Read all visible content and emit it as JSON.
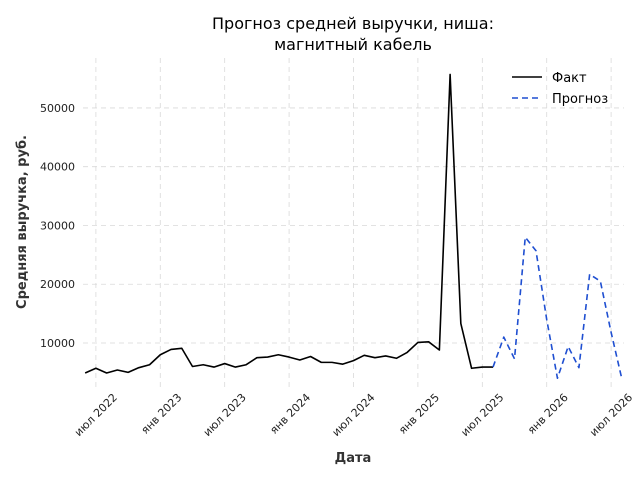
{
  "chart_data": {
    "type": "line",
    "title_lines": [
      "Прогноз средней выручки, ниша:",
      "магнитный кабель"
    ],
    "xlabel": "Дата",
    "ylabel": "Средняя выручка, руб.",
    "x_tick_labels": [
      "июл 2022",
      "янв 2023",
      "июл 2023",
      "янв 2024",
      "июл 2024",
      "янв 2025",
      "июл 2025",
      "янв 2026",
      "июл 2026"
    ],
    "x_ticks": [
      "2022-07",
      "2023-01",
      "2023-07",
      "2024-01",
      "2024-07",
      "2025-01",
      "2025-07",
      "2026-01",
      "2026-07"
    ],
    "y_ticks": [
      10000,
      20000,
      30000,
      40000,
      50000
    ],
    "y_tick_labels": [
      "10000",
      "20000",
      "30000",
      "40000",
      "50000"
    ],
    "xlim": [
      "2022-06",
      "2026-08"
    ],
    "ylim": [
      2000,
      58500
    ],
    "grid": true,
    "legend_position": "top-right",
    "series": [
      {
        "name": "Факт",
        "color": "#000000",
        "style": "solid",
        "x": [
          "2022-06",
          "2022-07",
          "2022-08",
          "2022-09",
          "2022-10",
          "2022-11",
          "2022-12",
          "2023-01",
          "2023-02",
          "2023-03",
          "2023-04",
          "2023-05",
          "2023-06",
          "2023-07",
          "2023-08",
          "2023-09",
          "2023-10",
          "2023-11",
          "2023-12",
          "2024-01",
          "2024-02",
          "2024-03",
          "2024-04",
          "2024-05",
          "2024-06",
          "2024-07",
          "2024-08",
          "2024-09",
          "2024-10",
          "2024-11",
          "2024-12",
          "2025-01",
          "2025-02",
          "2025-03",
          "2025-04",
          "2025-05",
          "2025-06",
          "2025-07",
          "2025-08"
        ],
        "y": [
          4900,
          5700,
          4900,
          5400,
          5000,
          5800,
          6300,
          8000,
          8900,
          9100,
          6000,
          6300,
          5900,
          6500,
          5900,
          6300,
          7500,
          7600,
          8000,
          7600,
          7100,
          7700,
          6700,
          6700,
          6400,
          7000,
          7900,
          7500,
          7800,
          7400,
          8400,
          10100,
          10200,
          8800,
          55700,
          13300,
          5700,
          5900,
          5900
        ]
      },
      {
        "name": "Прогноз",
        "color": "#1f4fd1",
        "style": "dashed",
        "x": [
          "2025-08",
          "2025-09",
          "2025-10",
          "2025-11",
          "2025-12",
          "2026-01",
          "2026-02",
          "2026-03",
          "2026-04",
          "2026-05",
          "2026-06",
          "2026-07",
          "2026-08"
        ],
        "y": [
          5900,
          11000,
          7300,
          28000,
          25700,
          14000,
          4000,
          9400,
          5800,
          21700,
          20500,
          11800,
          3900
        ]
      }
    ]
  }
}
